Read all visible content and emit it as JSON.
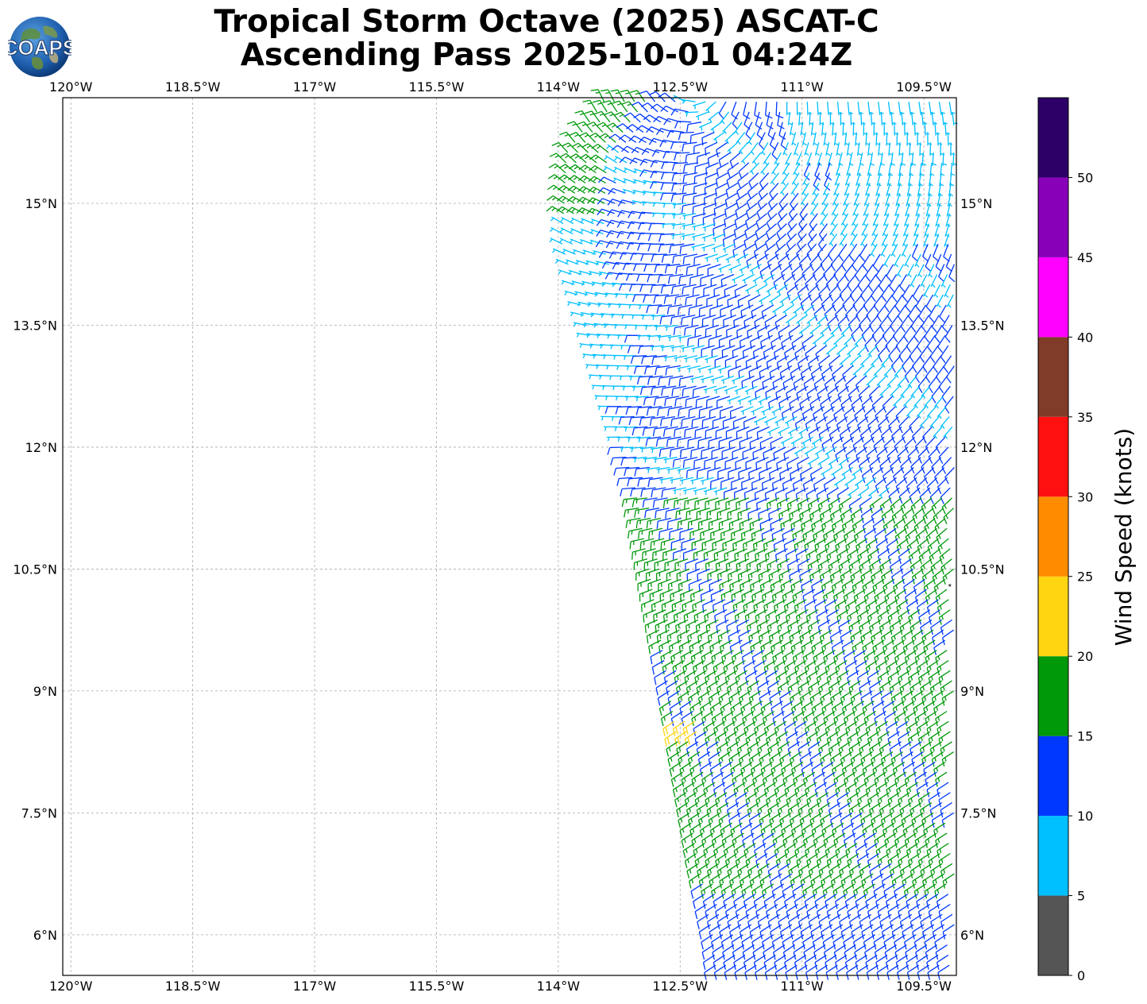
{
  "title": {
    "line1": "Tropical Storm Octave (2025) ASCAT-C",
    "line2": "Ascending Pass 2025-10-01 04:24Z"
  },
  "logo": {
    "text": "COAPS",
    "icon": "globe-logo-icon"
  },
  "map": {
    "lon_range": [
      -120.1,
      -109.1
    ],
    "lat_range": [
      5.5,
      16.3
    ],
    "grid": true,
    "lon_ticks": [
      {
        "value": -120.0,
        "label": "120°W"
      },
      {
        "value": -118.5,
        "label": "118.5°W"
      },
      {
        "value": -117.0,
        "label": "117°W"
      },
      {
        "value": -115.5,
        "label": "115.5°W"
      },
      {
        "value": -114.0,
        "label": "114°W"
      },
      {
        "value": -112.5,
        "label": "112.5°W"
      },
      {
        "value": -111.0,
        "label": "111°W"
      },
      {
        "value": -109.5,
        "label": "109.5°W"
      }
    ],
    "lat_ticks": [
      {
        "value": 15.0,
        "label": "15°N"
      },
      {
        "value": 13.5,
        "label": "13.5°N"
      },
      {
        "value": 12.0,
        "label": "12°N"
      },
      {
        "value": 10.5,
        "label": "10.5°N"
      },
      {
        "value": 9.0,
        "label": "9°N"
      },
      {
        "value": 7.5,
        "label": "7.5°N"
      },
      {
        "value": 6.0,
        "label": "6°N"
      }
    ],
    "wind_field": {
      "spacing_deg": 0.125,
      "swath_east_edge_lon": -109.1,
      "swath_west_edge": [
        {
          "lat": 16.3,
          "lon": -113.4
        },
        {
          "lat": 15.6,
          "lon": -113.9
        },
        {
          "lat": 14.5,
          "lon": -113.95
        },
        {
          "lat": 13.0,
          "lon": -113.5
        },
        {
          "lat": 11.5,
          "lon": -113.05
        },
        {
          "lat": 10.0,
          "lon": -112.8
        },
        {
          "lat": 8.5,
          "lon": -112.55
        },
        {
          "lat": 7.0,
          "lon": -112.3
        },
        {
          "lat": 6.0,
          "lon": -112.1
        },
        {
          "lat": 5.5,
          "lon": -112.05
        }
      ]
    }
  },
  "colorbar": {
    "label": "Wind Speed (knots)",
    "tick_labels": [
      "0",
      "5",
      "10",
      "15",
      "20",
      "25",
      "30",
      "35",
      "40",
      "45",
      "50"
    ],
    "bins": [
      {
        "min": 0,
        "max": 5,
        "color": "#555555"
      },
      {
        "min": 5,
        "max": 10,
        "color": "#00bfff"
      },
      {
        "min": 10,
        "max": 15,
        "color": "#0038ff"
      },
      {
        "min": 15,
        "max": 20,
        "color": "#00990a"
      },
      {
        "min": 20,
        "max": 25,
        "color": "#ffd511"
      },
      {
        "min": 25,
        "max": 30,
        "color": "#ff8c00"
      },
      {
        "min": 30,
        "max": 35,
        "color": "#ff1010"
      },
      {
        "min": 35,
        "max": 40,
        "color": "#803c28"
      },
      {
        "min": 40,
        "max": 45,
        "color": "#ff00ff"
      },
      {
        "min": 45,
        "max": 50,
        "color": "#8800b8"
      },
      {
        "min": 50,
        "max": 55,
        "color": "#2c0066"
      }
    ]
  }
}
